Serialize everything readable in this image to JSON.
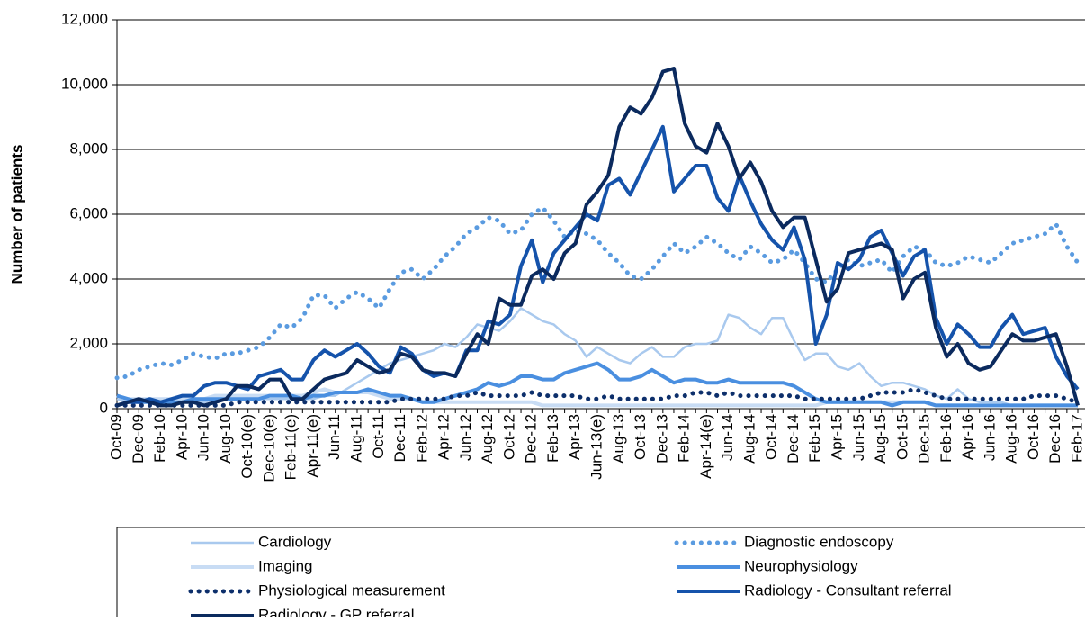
{
  "chart_data": {
    "type": "line",
    "y_label": "Number of patients",
    "categories": [
      "Oct-09",
      null,
      "Dec-09",
      null,
      "Feb-10",
      null,
      "Apr-10",
      null,
      "Jun-10",
      null,
      "Aug-10",
      null,
      "Oct-10(e)",
      null,
      "Dec-10(e)",
      null,
      "Feb-11(e)",
      null,
      "Apr-11(e)",
      null,
      "Jun-11",
      null,
      "Aug-11",
      null,
      "Oct-11",
      null,
      "Dec-11",
      null,
      "Feb-12",
      null,
      "Apr-12",
      null,
      "Jun-12",
      null,
      "Aug-12",
      null,
      "Oct-12",
      null,
      "Dec-12",
      null,
      "Feb-13",
      null,
      "Apr-13",
      null,
      "Jun-13(e)",
      null,
      "Aug-13",
      null,
      "Oct-13",
      null,
      "Dec-13",
      null,
      "Feb-14",
      null,
      "Apr-14(e)",
      null,
      "Jun-14",
      null,
      "Aug-14",
      null,
      "Oct-14",
      null,
      "Dec-14",
      null,
      "Feb-15",
      null,
      "Apr-15",
      null,
      "Jun-15",
      null,
      "Aug-15",
      null,
      "Oct-15",
      null,
      "Dec-15",
      null,
      "Feb-16",
      null,
      "Apr-16",
      null,
      "Jun-16",
      null,
      "Aug-16",
      null,
      "Oct-16",
      null,
      "Dec-16",
      null,
      "Feb-17"
    ],
    "ylim": [
      0,
      12000
    ],
    "yticks": [
      0,
      {
        "value": 2000,
        "label": "2,000"
      },
      {
        "value": 4000,
        "label": "4,000"
      },
      {
        "value": 6000,
        "label": "6,000"
      },
      {
        "value": 8000,
        "label": "8,000"
      },
      {
        "value": 10000,
        "label": "10,000"
      },
      {
        "value": 12000,
        "label": "12,000"
      }
    ],
    "grid": true,
    "legend": "bottom",
    "series": [
      {
        "name": "Cardiology",
        "color": "#a9c9ee",
        "line_width": 2.5,
        "line_style": "solid",
        "values": [
          300,
          200,
          200,
          200,
          200,
          200,
          200,
          200,
          200,
          300,
          300,
          300,
          300,
          300,
          300,
          300,
          300,
          300,
          300,
          400,
          400,
          600,
          800,
          1000,
          1200,
          1400,
          1500,
          1600,
          1700,
          1800,
          2000,
          1900,
          2200,
          2600,
          2500,
          2400,
          2700,
          3100,
          2900,
          2700,
          2600,
          2300,
          2100,
          1600,
          1900,
          1700,
          1500,
          1400,
          1700,
          1900,
          1600,
          1600,
          1900,
          2000,
          2000,
          2100,
          2900,
          2800,
          2500,
          2300,
          2800,
          2800,
          2100,
          1500,
          1700,
          1700,
          1300,
          1200,
          1400,
          1000,
          700,
          800,
          800,
          700,
          600,
          400,
          300,
          600,
          300,
          200,
          200,
          200,
          100,
          100,
          100,
          100,
          100,
          100,
          100
        ]
      },
      {
        "name": "Diagnostic endoscopy",
        "color": "#5a9be0",
        "line_width": 5,
        "line_style": "dotted",
        "values": [
          950,
          1000,
          1200,
          1300,
          1400,
          1350,
          1500,
          1700,
          1600,
          1550,
          1700,
          1700,
          1800,
          1900,
          2200,
          2600,
          2500,
          2800,
          3500,
          3500,
          3100,
          3400,
          3600,
          3400,
          3100,
          3700,
          4200,
          4300,
          4000,
          4300,
          4700,
          5000,
          5400,
          5600,
          5900,
          5800,
          5400,
          5500,
          6000,
          6200,
          5800,
          5300,
          5500,
          5400,
          5200,
          4800,
          4500,
          4100,
          4000,
          4300,
          4700,
          5100,
          4800,
          5000,
          5300,
          5100,
          4800,
          4600,
          5000,
          4800,
          4500,
          4600,
          4900,
          4500,
          4000,
          3900,
          4300,
          4600,
          4400,
          4500,
          4600,
          4200,
          4700,
          5000,
          4900,
          4500,
          4400,
          4500,
          4700,
          4600,
          4500,
          4800,
          5100,
          5200,
          5300,
          5400,
          5700,
          5000,
          4500
        ]
      },
      {
        "name": "Imaging",
        "color": "#c8dcf4",
        "line_width": 4,
        "line_style": "solid",
        "values": [
          400,
          300,
          300,
          300,
          300,
          300,
          300,
          300,
          300,
          400,
          400,
          400,
          400,
          400,
          400,
          400,
          400,
          400,
          500,
          600,
          500,
          500,
          500,
          500,
          400,
          300,
          300,
          300,
          200,
          200,
          200,
          200,
          200,
          200,
          200,
          200,
          200,
          200,
          200,
          100,
          100,
          100,
          100,
          100,
          100,
          100,
          100,
          100,
          100,
          100,
          100,
          100,
          100,
          100,
          100,
          100,
          100,
          100,
          100,
          100,
          100,
          100,
          100,
          100,
          100,
          200,
          200,
          200,
          200,
          200,
          200,
          200,
          200,
          200,
          200,
          100,
          100,
          100,
          100,
          100,
          100,
          100,
          100,
          100,
          100,
          100,
          100,
          100,
          100
        ]
      },
      {
        "name": "Neurophysiology",
        "color": "#4a8fe0",
        "line_width": 4,
        "line_style": "solid",
        "values": [
          400,
          300,
          200,
          200,
          200,
          200,
          200,
          300,
          300,
          300,
          300,
          300,
          300,
          300,
          400,
          400,
          400,
          300,
          400,
          400,
          500,
          500,
          500,
          600,
          500,
          400,
          400,
          300,
          200,
          200,
          300,
          400,
          500,
          600,
          800,
          700,
          800,
          1000,
          1000,
          900,
          900,
          1100,
          1200,
          1300,
          1400,
          1200,
          900,
          900,
          1000,
          1200,
          1000,
          800,
          900,
          900,
          800,
          800,
          900,
          800,
          800,
          800,
          800,
          800,
          700,
          500,
          300,
          200,
          200,
          200,
          200,
          200,
          200,
          100,
          200,
          200,
          200,
          100,
          100,
          100,
          100,
          100,
          100,
          100,
          100,
          100,
          100,
          100,
          100,
          100,
          100
        ]
      },
      {
        "name": "Physiological measurement",
        "color": "#0d2f6b",
        "line_width": 5,
        "line_style": "dotted",
        "values": [
          100,
          100,
          100,
          100,
          100,
          100,
          100,
          100,
          100,
          100,
          100,
          200,
          200,
          200,
          200,
          200,
          200,
          200,
          200,
          200,
          200,
          200,
          200,
          200,
          200,
          200,
          300,
          300,
          300,
          300,
          300,
          400,
          400,
          500,
          400,
          400,
          400,
          400,
          500,
          400,
          400,
          400,
          400,
          300,
          300,
          400,
          300,
          300,
          300,
          300,
          300,
          400,
          400,
          500,
          500,
          400,
          500,
          400,
          400,
          400,
          400,
          400,
          400,
          300,
          300,
          300,
          300,
          300,
          300,
          400,
          500,
          500,
          500,
          600,
          500,
          400,
          300,
          300,
          300,
          300,
          300,
          300,
          300,
          300,
          400,
          400,
          400,
          300,
          200
        ]
      },
      {
        "name": "Radiology - Consultant referral",
        "color": "#1553ab",
        "line_width": 4,
        "line_style": "solid",
        "values": [
          100,
          200,
          200,
          300,
          200,
          300,
          400,
          400,
          700,
          800,
          800,
          700,
          600,
          1000,
          1100,
          1200,
          900,
          900,
          1500,
          1800,
          1600,
          1800,
          2000,
          1700,
          1300,
          1100,
          1900,
          1700,
          1200,
          1000,
          1100,
          1000,
          1800,
          1800,
          2700,
          2600,
          2900,
          4400,
          5200,
          3900,
          4800,
          5200,
          5600,
          6000,
          5800,
          6900,
          7100,
          6600,
          7300,
          8000,
          8700,
          6700,
          7100,
          7500,
          7500,
          6500,
          6100,
          7200,
          6400,
          5700,
          5200,
          4900,
          5600,
          4600,
          2000,
          2900,
          4500,
          4300,
          4600,
          5300,
          5500,
          4800,
          4100,
          4700,
          4900,
          2800,
          2000,
          2600,
          2300,
          1900,
          1900,
          2500,
          2900,
          2300,
          2400,
          2500,
          1600,
          1000,
          600
        ]
      },
      {
        "name": "Radiology - GP referral",
        "color": "#0b2a5e",
        "line_width": 4,
        "line_style": "solid",
        "values": [
          100,
          200,
          300,
          200,
          100,
          100,
          200,
          200,
          100,
          200,
          300,
          700,
          700,
          600,
          900,
          900,
          300,
          300,
          600,
          900,
          1000,
          1100,
          1500,
          1300,
          1100,
          1200,
          1700,
          1600,
          1200,
          1100,
          1100,
          1000,
          1700,
          2300,
          2000,
          3400,
          3200,
          3200,
          4100,
          4300,
          4000,
          4800,
          5100,
          6300,
          6700,
          7200,
          8700,
          9300,
          9100,
          9600,
          10400,
          10500,
          8800,
          8100,
          7900,
          8800,
          8100,
          7100,
          7600,
          7000,
          6100,
          5600,
          5900,
          5900,
          4600,
          3300,
          3700,
          4800,
          4900,
          5000,
          5100,
          4900,
          3400,
          4000,
          4200,
          2500,
          1600,
          2000,
          1400,
          1200,
          1300,
          1800,
          2300,
          2100,
          2100,
          2200,
          2300,
          1300,
          100
        ]
      }
    ]
  }
}
